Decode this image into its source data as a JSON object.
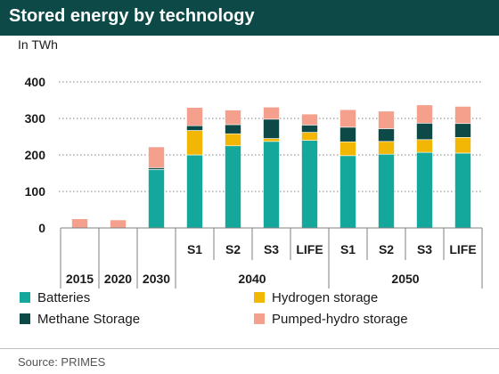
{
  "chart_data": {
    "type": "bar",
    "stacked": true,
    "title": "Stored energy by technology",
    "unit": "In TWh",
    "source": "Source: PRIMES",
    "ylim": [
      0,
      400
    ],
    "yticks": [
      0,
      100,
      200,
      300,
      400
    ],
    "grid": true,
    "legend_position": "bottom",
    "categories": [
      "2015",
      "2020",
      "2030",
      "S1",
      "S2",
      "S3",
      "LIFE",
      "S1",
      "S2",
      "S3",
      "LIFE"
    ],
    "groups": [
      {
        "label": "2015",
        "start": 0,
        "end": 0
      },
      {
        "label": "2020",
        "start": 1,
        "end": 1
      },
      {
        "label": "2030",
        "start": 2,
        "end": 2
      },
      {
        "label": "2040",
        "start": 3,
        "end": 6
      },
      {
        "label": "2050",
        "start": 7,
        "end": 10
      }
    ],
    "series": [
      {
        "name": "Batteries",
        "color": "#14a79c",
        "values": [
          0,
          0,
          160,
          200,
          225,
          237,
          240,
          198,
          202,
          207,
          205
        ]
      },
      {
        "name": "Hydrogen storage",
        "color": "#f2b705",
        "values": [
          0,
          0,
          0,
          67,
          33,
          8,
          22,
          38,
          35,
          35,
          43
        ]
      },
      {
        "name": "Methane Storage",
        "color": "#0d4a47",
        "values": [
          0,
          0,
          5,
          13,
          25,
          53,
          20,
          40,
          35,
          45,
          38
        ]
      },
      {
        "name": "Pumped-hydro storage",
        "color": "#f4a08c",
        "values": [
          25,
          22,
          57,
          50,
          40,
          33,
          30,
          48,
          48,
          50,
          47
        ]
      }
    ]
  }
}
